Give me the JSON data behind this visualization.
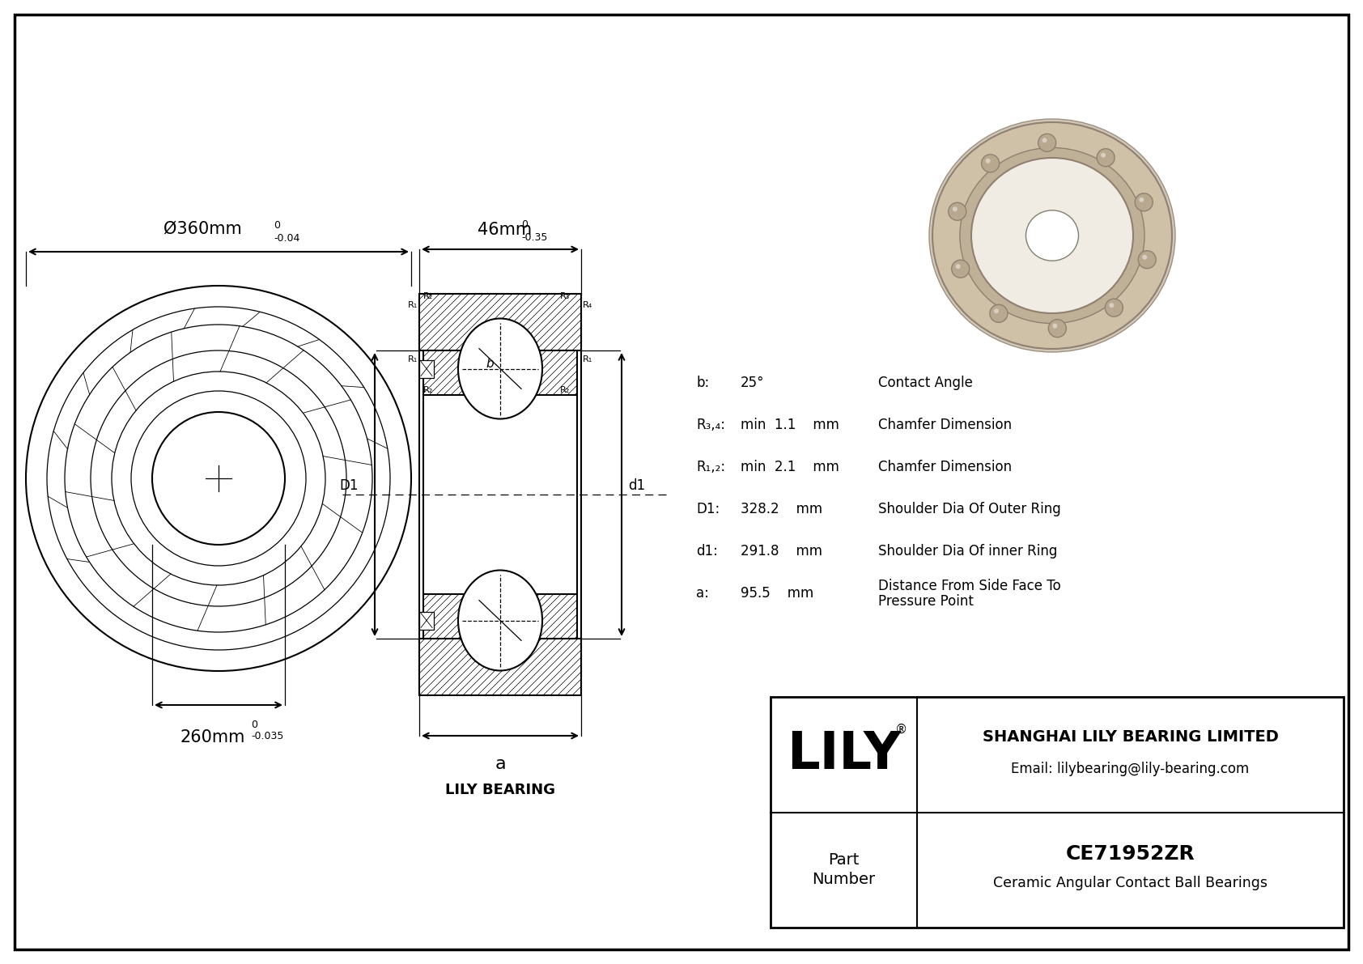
{
  "bg_color": "#ffffff",
  "black": "#000000",
  "title_part": "CE71952ZR",
  "title_type": "Ceramic Angular Contact Ball Bearings",
  "company": "SHANGHAI LILY BEARING LIMITED",
  "email": "Email: lilybearing@lily-bearing.com",
  "lily_text": "LILY",
  "part_label_line1": "Part",
  "part_label_line2": "Number",
  "dim_outer": "Ø360mm",
  "dim_outer_tol_top": "0",
  "dim_outer_tol_bot": "-0.04",
  "dim_inner": "260mm",
  "dim_inner_tol_top": "0",
  "dim_inner_tol_bot": "-0.035",
  "dim_width": "46mm",
  "dim_width_tol_top": "0",
  "dim_width_tol_bot": "-0.35",
  "spec_rows": [
    {
      "key": "b:",
      "val": "25°",
      "desc": "Contact Angle"
    },
    {
      "key": "R₃,₄:",
      "val": "min  1.1    mm",
      "desc": "Chamfer Dimension"
    },
    {
      "key": "R₁,₂:",
      "val": "min  2.1    mm",
      "desc": "Chamfer Dimension"
    },
    {
      "key": "D1:",
      "val": "328.2    mm",
      "desc": "Shoulder Dia Of Outer Ring"
    },
    {
      "key": "d1:",
      "val": "291.8    mm",
      "desc": "Shoulder Dia Of inner Ring"
    },
    {
      "key": "a:",
      "val": "95.5    mm",
      "desc": "Distance From Side Face To\nPressure Point"
    }
  ],
  "lily_bearing_label": "LILY BEARING",
  "dim_a_label": "a",
  "tan1": "#cfc0a8",
  "tan2": "#bfb098",
  "tan3": "#afa080",
  "tan4": "#e8e0d0",
  "tan5": "#d8cfc0"
}
